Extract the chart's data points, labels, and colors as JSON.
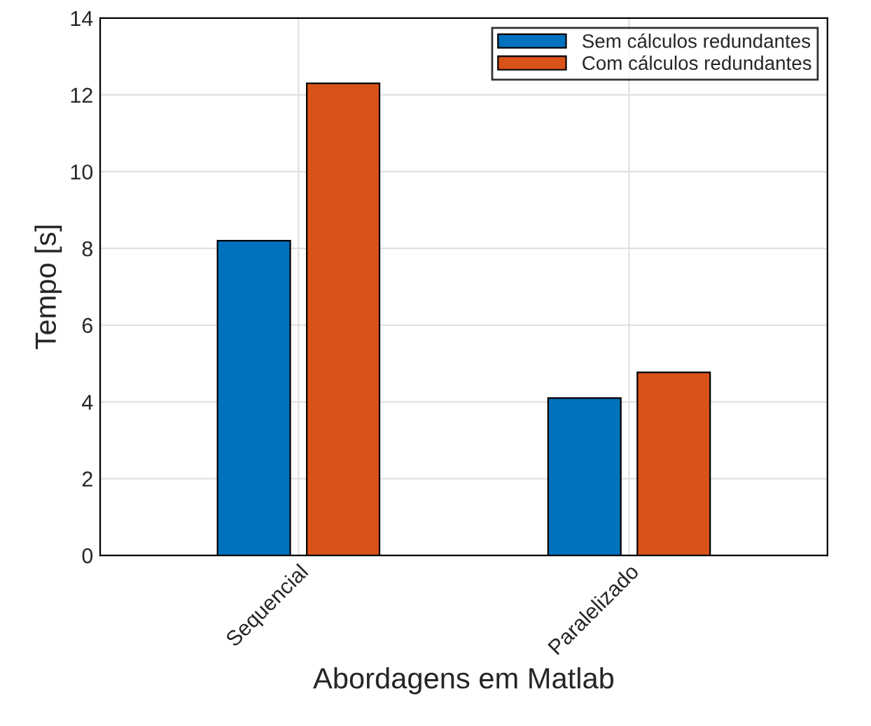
{
  "chart_data": {
    "type": "bar",
    "xlabel": "Abordagens em Matlab",
    "ylabel": "Tempo [s]",
    "categories": [
      "Sequencial",
      "Paralelizado"
    ],
    "series": [
      {
        "name": "Sem cálculos redundantes",
        "color": "#0072bd",
        "values": [
          8.2,
          4.1
        ]
      },
      {
        "name": "Com cálculos redundantes",
        "color": "#d95319",
        "values": [
          12.3,
          4.77
        ]
      }
    ],
    "ylim": [
      0,
      14
    ],
    "yticks": [
      0,
      2,
      4,
      6,
      8,
      10,
      12,
      14
    ],
    "grid": true,
    "legend": "top right"
  }
}
